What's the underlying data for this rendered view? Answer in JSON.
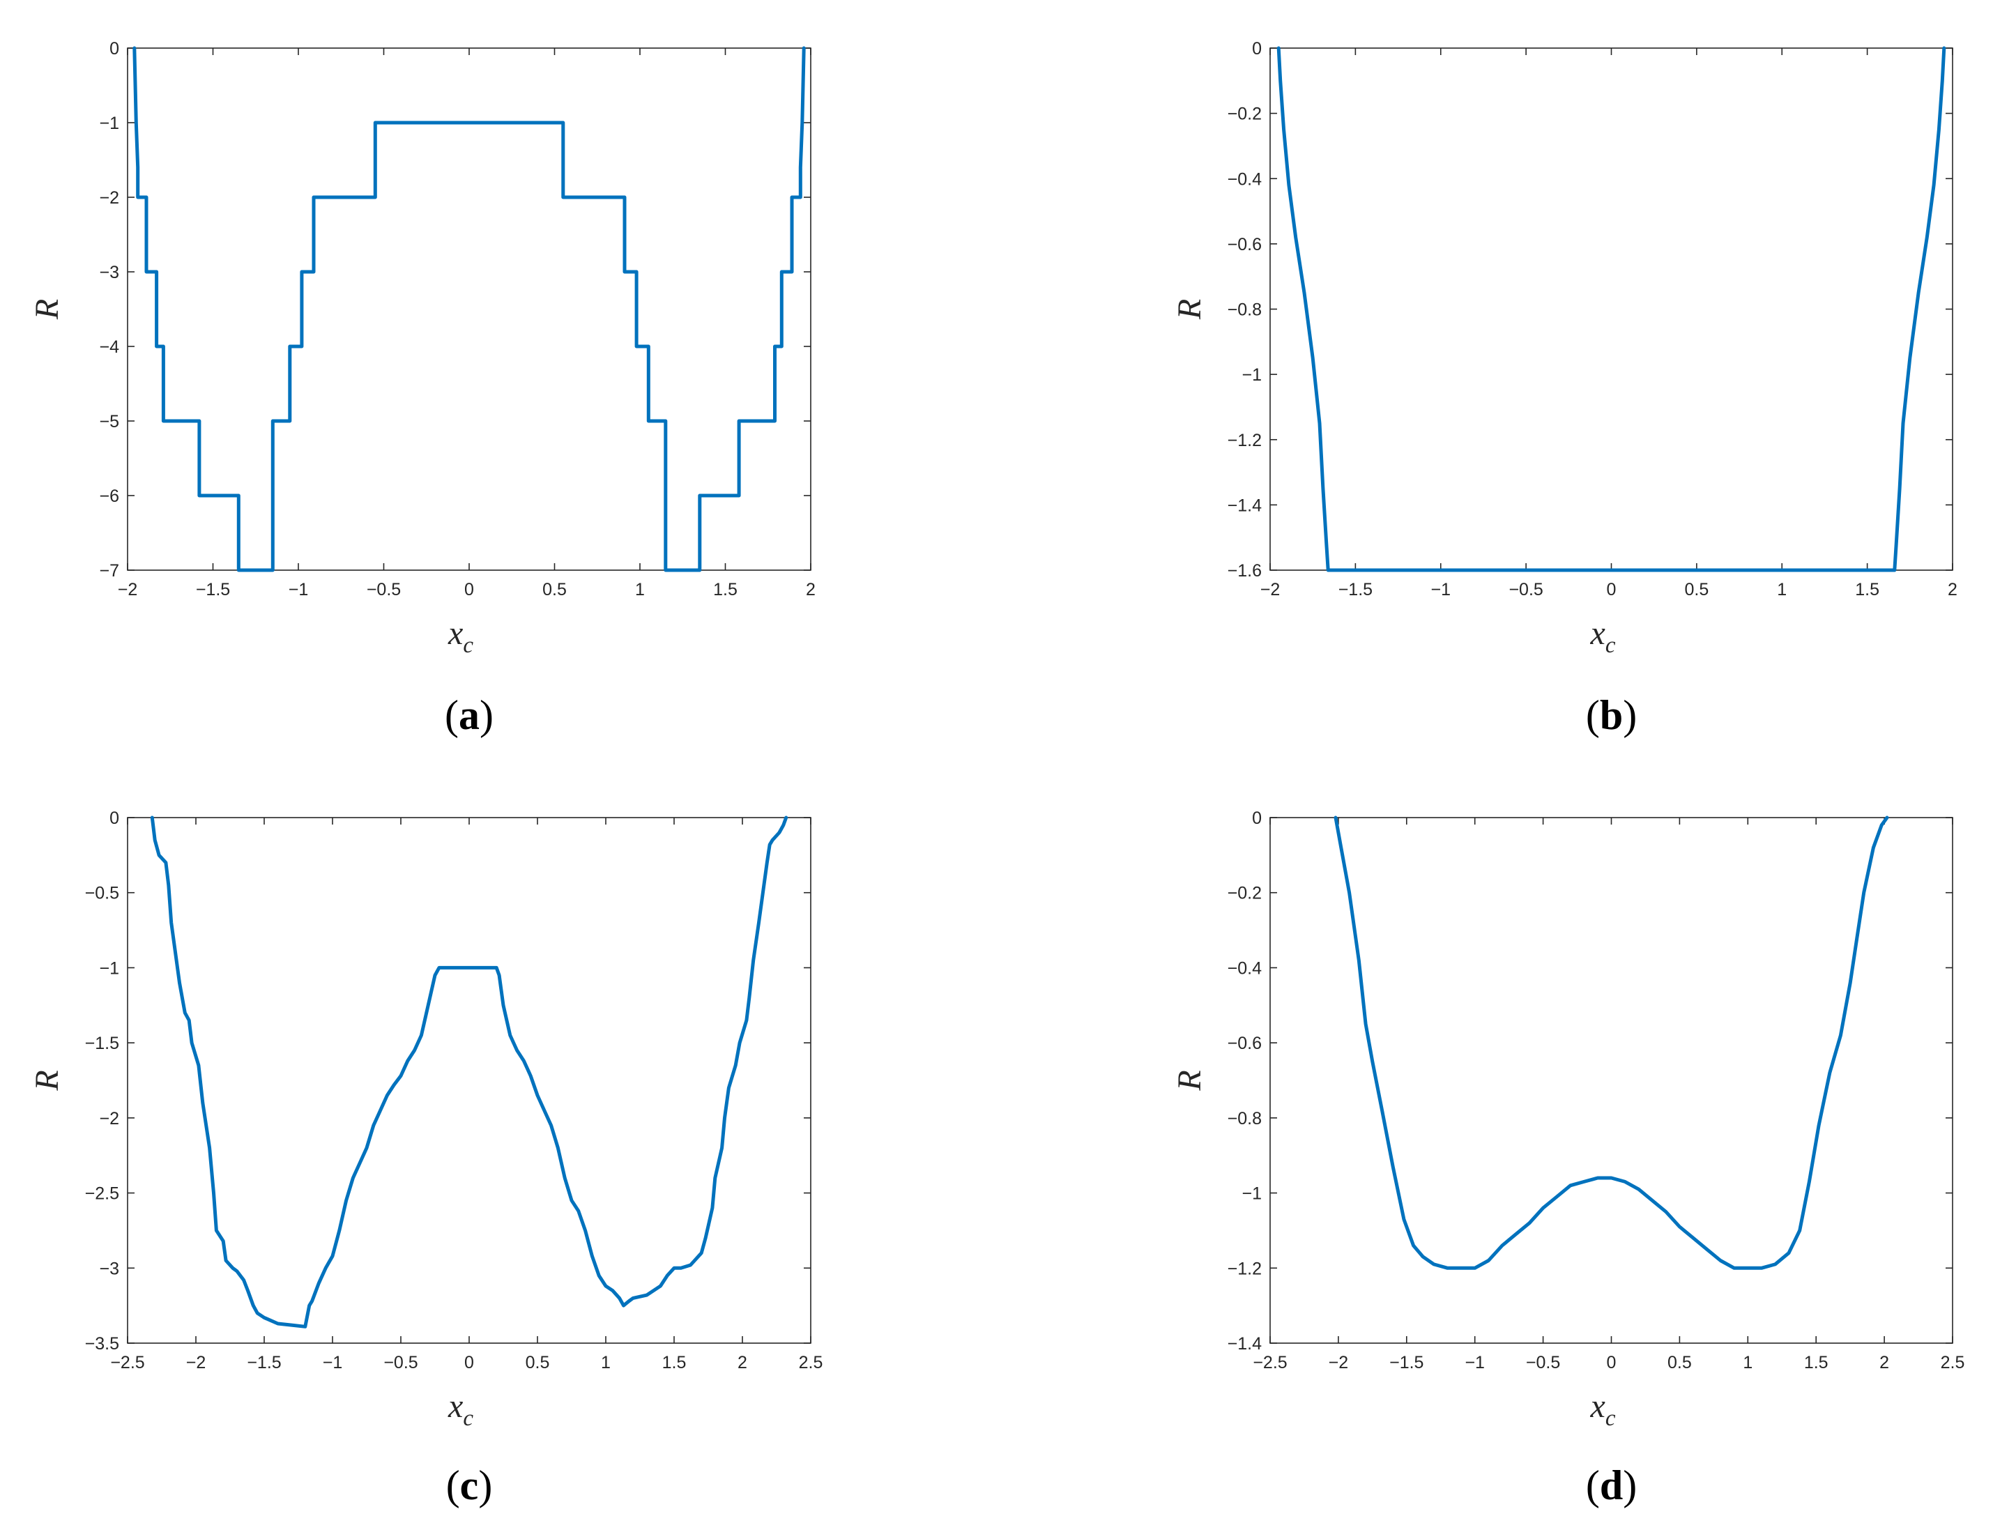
{
  "chart_data": [
    {
      "type": "line",
      "caption": "a",
      "xlabel": "x",
      "xlabel_sub": "c",
      "ylabel": "R",
      "xlim": [
        -2,
        2
      ],
      "ylim": [
        -7,
        0
      ],
      "xticks": [
        "−2",
        "−1.5",
        "−1",
        "−0.5",
        "0",
        "0.5",
        "1",
        "1.5",
        "2"
      ],
      "yticks": [
        "0",
        "−1",
        "−2",
        "−3",
        "−4",
        "−5",
        "−6",
        "−7"
      ],
      "color": "#0072BD",
      "series": [
        {
          "x": [
            -1.96,
            -1.95,
            -1.94,
            -1.94,
            -1.89,
            -1.89,
            -1.83,
            -1.83,
            -1.79,
            -1.79,
            -1.74,
            -1.74,
            -1.58,
            -1.58,
            -1.35,
            -1.35,
            -1.15,
            -1.15,
            -1.05,
            -1.05,
            -0.98,
            -0.98,
            -0.91,
            -0.91,
            -0.55,
            -0.55,
            0.55,
            0.55,
            0.91,
            0.91,
            0.98,
            0.98,
            1.05,
            1.05,
            1.15,
            1.15,
            1.35,
            1.35,
            1.58,
            1.58,
            1.74,
            1.74,
            1.79,
            1.79,
            1.83,
            1.83,
            1.89,
            1.89,
            1.94,
            1.94,
            1.95,
            1.96
          ],
          "y": [
            0,
            -1,
            -1.6,
            -2,
            -2,
            -3,
            -3,
            -4,
            -4,
            -5,
            -5,
            -5,
            -5,
            -6,
            -6,
            -7,
            -7,
            -5,
            -5,
            -4,
            -4,
            -3,
            -3,
            -2,
            -2,
            -1,
            -1,
            -2,
            -2,
            -3,
            -3,
            -4,
            -4,
            -5,
            -5,
            -7,
            -7,
            -6,
            -6,
            -5,
            -5,
            -5,
            -5,
            -4,
            -4,
            -3,
            -3,
            -2,
            -2,
            -1.6,
            -1,
            0
          ]
        }
      ]
    },
    {
      "type": "line",
      "caption": "b",
      "xlabel": "x",
      "xlabel_sub": "c",
      "ylabel": "R",
      "xlim": [
        -2,
        2
      ],
      "ylim": [
        -1.6,
        0
      ],
      "xticks": [
        "−2",
        "−1.5",
        "−1",
        "−0.5",
        "0",
        "0.5",
        "1",
        "1.5",
        "2"
      ],
      "yticks": [
        "0",
        "−0.2",
        "−0.4",
        "−0.6",
        "−0.8",
        "−1",
        "−1.2",
        "−1.4",
        "−1.6"
      ],
      "color": "#0072BD",
      "series": [
        {
          "x": [
            -1.95,
            -1.94,
            -1.92,
            -1.89,
            -1.85,
            -1.8,
            -1.75,
            -1.71,
            -1.69,
            -1.67,
            -1.66,
            1.66,
            1.67,
            1.69,
            1.71,
            1.75,
            1.8,
            1.85,
            1.89,
            1.92,
            1.94,
            1.95
          ],
          "y": [
            0,
            -0.1,
            -0.25,
            -0.42,
            -0.58,
            -0.75,
            -0.95,
            -1.15,
            -1.35,
            -1.52,
            -1.6,
            -1.6,
            -1.52,
            -1.35,
            -1.15,
            -0.95,
            -0.75,
            -0.58,
            -0.42,
            -0.25,
            -0.1,
            0
          ]
        }
      ]
    },
    {
      "type": "line",
      "caption": "c",
      "xlabel": "x",
      "xlabel_sub": "c",
      "ylabel": "R",
      "xlim": [
        -2.5,
        2.5
      ],
      "ylim": [
        -3.5,
        0
      ],
      "xticks": [
        "−2.5",
        "−2",
        "−1.5",
        "−1",
        "−0.5",
        "0",
        "0.5",
        "1",
        "1.5",
        "2",
        "2.5"
      ],
      "yticks": [
        "0",
        "−0.5",
        "−1",
        "−1.5",
        "−2",
        "−2.5",
        "−3",
        "−3.5"
      ],
      "color": "#0072BD",
      "series": [
        {
          "x": [
            -2.32,
            -2.3,
            -2.27,
            -2.22,
            -2.2,
            -2.18,
            -2.15,
            -2.12,
            -2.08,
            -2.05,
            -2.03,
            -1.98,
            -1.95,
            -1.9,
            -1.87,
            -1.85,
            -1.8,
            -1.78,
            -1.73,
            -1.7,
            -1.65,
            -1.62,
            -1.58,
            -1.55,
            -1.5,
            -1.45,
            -1.4,
            -1.3,
            -1.2,
            -1.17,
            -1.15,
            -1.1,
            -1.05,
            -1.0,
            -0.95,
            -0.9,
            -0.85,
            -0.8,
            -0.75,
            -0.7,
            -0.65,
            -0.6,
            -0.55,
            -0.5,
            -0.45,
            -0.4,
            -0.35,
            -0.3,
            -0.25,
            -0.22,
            -0.2,
            -0.15,
            0.0,
            0.15,
            0.2,
            0.22,
            0.25,
            0.3,
            0.35,
            0.4,
            0.45,
            0.5,
            0.55,
            0.6,
            0.65,
            0.7,
            0.75,
            0.8,
            0.85,
            0.9,
            0.95,
            1.0,
            1.05,
            1.1,
            1.13,
            1.17,
            1.2,
            1.3,
            1.4,
            1.45,
            1.5,
            1.55,
            1.62,
            1.65,
            1.7,
            1.73,
            1.78,
            1.8,
            1.85,
            1.87,
            1.9,
            1.95,
            1.98,
            2.03,
            2.05,
            2.08,
            2.12,
            2.15,
            2.18,
            2.2,
            2.22,
            2.27,
            2.3,
            2.32
          ],
          "y": [
            0,
            -0.15,
            -0.25,
            -0.3,
            -0.45,
            -0.7,
            -0.9,
            -1.1,
            -1.3,
            -1.35,
            -1.5,
            -1.65,
            -1.9,
            -2.2,
            -2.5,
            -2.75,
            -2.82,
            -2.95,
            -3.0,
            -3.02,
            -3.08,
            -3.15,
            -3.25,
            -3.3,
            -3.33,
            -3.35,
            -3.37,
            -3.38,
            -3.39,
            -3.25,
            -3.22,
            -3.1,
            -3.0,
            -2.92,
            -2.75,
            -2.55,
            -2.4,
            -2.3,
            -2.2,
            -2.05,
            -1.95,
            -1.85,
            -1.78,
            -1.72,
            -1.62,
            -1.55,
            -1.45,
            -1.25,
            -1.05,
            -1.0,
            -1.0,
            -1.0,
            -1.0,
            -1.0,
            -1.0,
            -1.05,
            -1.25,
            -1.45,
            -1.55,
            -1.62,
            -1.72,
            -1.85,
            -1.95,
            -2.05,
            -2.2,
            -2.4,
            -2.55,
            -2.62,
            -2.75,
            -2.92,
            -3.05,
            -3.12,
            -3.15,
            -3.2,
            -3.25,
            -3.22,
            -3.2,
            -3.18,
            -3.12,
            -3.05,
            -3.0,
            -3.0,
            -2.98,
            -2.95,
            -2.9,
            -2.8,
            -2.6,
            -2.4,
            -2.2,
            -2.0,
            -1.8,
            -1.65,
            -1.5,
            -1.35,
            -1.2,
            -0.95,
            -0.7,
            -0.5,
            -0.3,
            -0.18,
            -0.15,
            -0.1,
            -0.05,
            0
          ]
        }
      ]
    },
    {
      "type": "line",
      "caption": "d",
      "xlabel": "x",
      "xlabel_sub": "c",
      "ylabel": "R",
      "xlim": [
        -2.5,
        2.5
      ],
      "ylim": [
        -1.4,
        0
      ],
      "xticks": [
        "−2.5",
        "−2",
        "−1.5",
        "−1",
        "−0.5",
        "0",
        "0.5",
        "1",
        "1.5",
        "2",
        "2.5"
      ],
      "yticks": [
        "0",
        "−0.2",
        "−0.4",
        "−0.6",
        "−0.8",
        "−1",
        "−1.2",
        "−1.4"
      ],
      "color": "#0072BD",
      "series": [
        {
          "x": [
            -2.02,
            -1.98,
            -1.92,
            -1.85,
            -1.8,
            -1.75,
            -1.68,
            -1.6,
            -1.52,
            -1.45,
            -1.38,
            -1.3,
            -1.2,
            -1.1,
            -1.0,
            -0.9,
            -0.8,
            -0.7,
            -0.6,
            -0.5,
            -0.4,
            -0.3,
            -0.2,
            -0.1,
            0.0,
            0.1,
            0.2,
            0.3,
            0.4,
            0.5,
            0.6,
            0.7,
            0.8,
            0.9,
            1.0,
            1.1,
            1.2,
            1.3,
            1.38,
            1.45,
            1.52,
            1.6,
            1.68,
            1.75,
            1.8,
            1.85,
            1.92,
            1.98,
            2.02
          ],
          "y": [
            0,
            -0.08,
            -0.2,
            -0.38,
            -0.55,
            -0.65,
            -0.78,
            -0.93,
            -1.07,
            -1.14,
            -1.17,
            -1.19,
            -1.2,
            -1.2,
            -1.2,
            -1.18,
            -1.14,
            -1.11,
            -1.08,
            -1.04,
            -1.01,
            -0.98,
            -0.97,
            -0.96,
            -0.96,
            -0.97,
            -0.99,
            -1.02,
            -1.05,
            -1.09,
            -1.12,
            -1.15,
            -1.18,
            -1.2,
            -1.2,
            -1.2,
            -1.19,
            -1.16,
            -1.1,
            -0.97,
            -0.82,
            -0.68,
            -0.58,
            -0.44,
            -0.32,
            -0.2,
            -0.08,
            -0.02,
            0
          ]
        }
      ]
    }
  ]
}
